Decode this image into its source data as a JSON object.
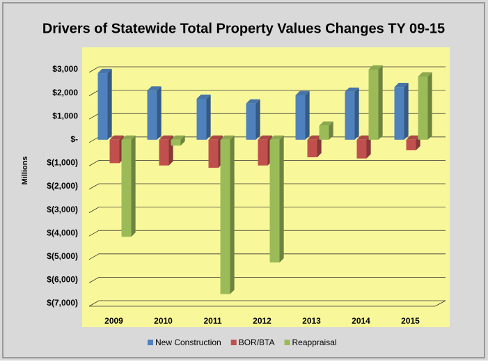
{
  "chart_data": {
    "type": "bar3d",
    "title": "Drivers of Statewide Total Property Values Changes TY 09-15",
    "y_label": "Millions",
    "categories": [
      "2009",
      "2010",
      "2011",
      "2012",
      "2013",
      "2014",
      "2015"
    ],
    "series": [
      {
        "name": "New Construction",
        "color": "#4f81bd",
        "values": [
          2850,
          2100,
          1750,
          1550,
          1900,
          2050,
          2250
        ]
      },
      {
        "name": "BOR/BTA",
        "color": "#c0504d",
        "values": [
          -1000,
          -1100,
          -1200,
          -1100,
          -750,
          -800,
          -450
        ]
      },
      {
        "name": "Reappraisal",
        "color": "#9bbb59",
        "values": [
          -4150,
          -250,
          -6600,
          -5250,
          600,
          3000,
          2700
        ]
      }
    ],
    "ylim": [
      -7000,
      3000
    ],
    "yticks": [
      {
        "value": 3000,
        "label": "$3,000"
      },
      {
        "value": 2000,
        "label": "$2,000"
      },
      {
        "value": 1000,
        "label": "$1,000"
      },
      {
        "value": 0,
        "label": "$-"
      },
      {
        "value": -1000,
        "label": "$(1,000)"
      },
      {
        "value": -2000,
        "label": "$(2,000)"
      },
      {
        "value": -3000,
        "label": "$(3,000)"
      },
      {
        "value": -4000,
        "label": "$(4,000)"
      },
      {
        "value": -5000,
        "label": "$(5,000)"
      },
      {
        "value": -6000,
        "label": "$(6,000)"
      },
      {
        "value": -7000,
        "label": "$(7,000)"
      }
    ],
    "grid": true,
    "legend": "bottom"
  }
}
